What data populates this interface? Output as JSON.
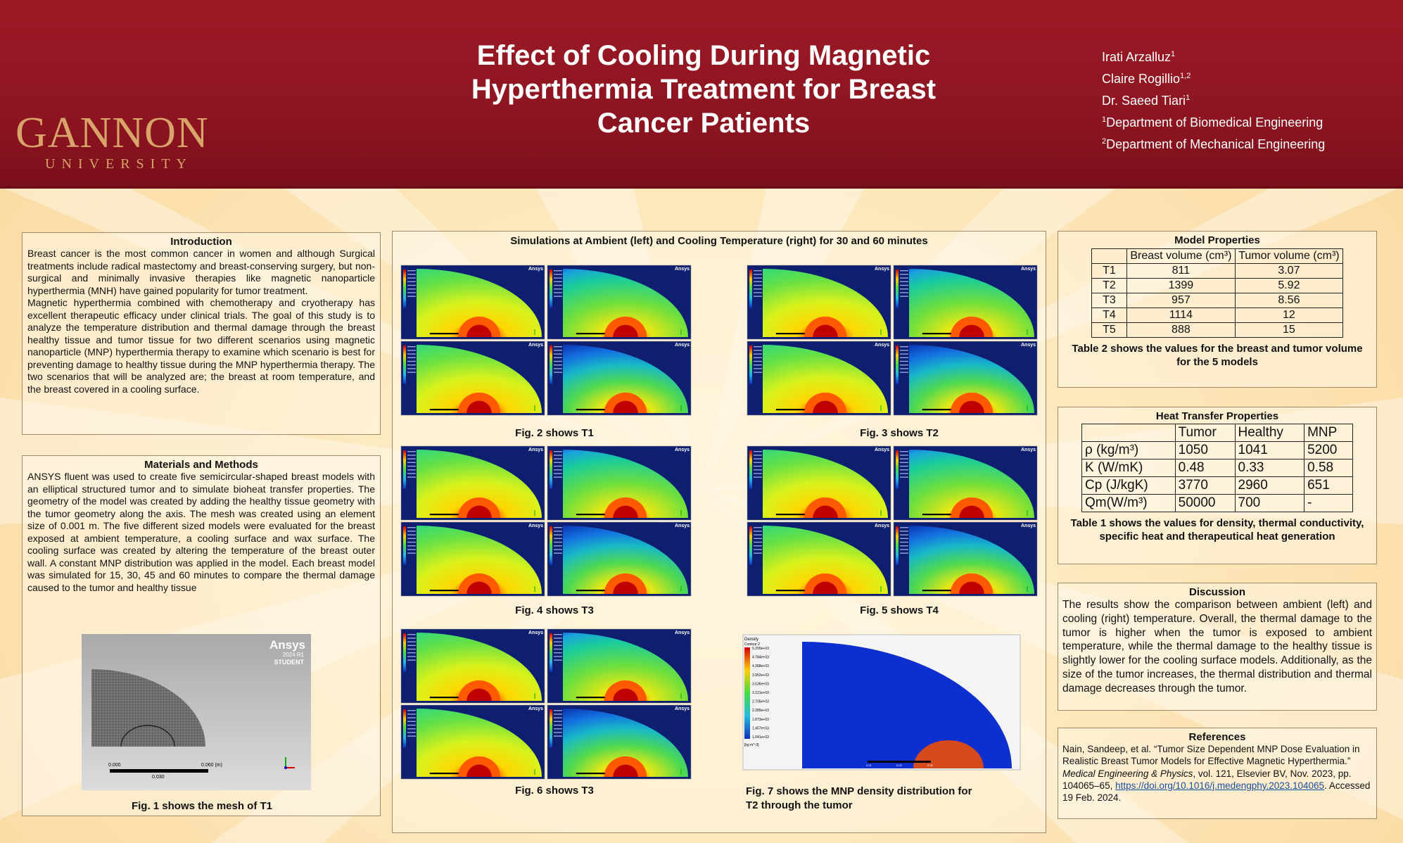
{
  "header": {
    "title_lines": [
      "Effect of Cooling During Magnetic",
      "Hyperthermia Treatment for Breast",
      "Cancer Patients"
    ],
    "logo_main": "GANNON",
    "logo_sub": "UNIVERSITY",
    "authors": [
      {
        "name": "Irati Arzalluz",
        "sup": "1"
      },
      {
        "name": "Claire Rogillio",
        "sup": "1,2"
      },
      {
        "name": "Dr. Saeed Tiari",
        "sup": "1"
      }
    ],
    "affiliations": [
      {
        "sup": "1",
        "text": "Department of Biomedical Engineering"
      },
      {
        "sup": "2",
        "text": "Department of Mechanical Engineering"
      }
    ]
  },
  "introduction": {
    "title": "Introduction",
    "p1": "Breast cancer is the most common cancer in women and although Surgical treatments include radical mastectomy and breast-conserving surgery, but non-surgical and minimally invasive therapies like magnetic nanoparticle hyperthermia (MNH) have gained popularity for tumor treatment.",
    "p2": "Magnetic hyperthermia combined with chemotherapy and cryotherapy has excellent therapeutic efficacy under clinical trials. The goal of this study is to analyze the temperature distribution and thermal damage through the breast healthy tissue and tumor tissue for two different scenarios using magnetic nanoparticle (MNP) hyperthermia therapy to examine which scenario is best for preventing damage to healthy tissue during the MNP hyperthermia therapy. The two scenarios that will be analyzed are; the breast at room temperature, and the breast covered in a cooling surface."
  },
  "methods": {
    "title": "Materials and Methods",
    "text": "ANSYS fluent was used to create five semicircular-shaped breast models with an elliptical structured tumor and to simulate bioheat transfer properties. The geometry of the model was created by adding the healthy tissue geometry with the tumor geometry along the axis. The mesh was created using an element size of 0.001 m. The five different sized models were evaluated for the breast exposed at ambient temperature, a cooling surface and wax surface. The cooling surface was created by altering the temperature of the breast outer wall. A constant MNP distribution was applied in the model. Each breast model was simulated for 15, 30, 45 and 60 minutes to compare the thermal damage caused to the tumor and healthy tissue",
    "mesh_brand": "Ansys",
    "mesh_version": "2024 R1",
    "mesh_student": "STUDENT",
    "scale_left": "0.000",
    "scale_mid": "0.030",
    "scale_right": "0.060 (m)",
    "fig1_caption": "Fig. 1 shows the mesh of T1"
  },
  "simulations": {
    "title": "Simulations at Ambient (left) and Cooling  Temperature (right)  for  30 and 60 minutes",
    "fig2": "Fig. 2 shows T1",
    "fig3": "Fig. 3 shows T2",
    "fig4": "Fig. 4 shows T3",
    "fig5": "Fig. 5 shows T4",
    "fig6": "Fig. 6 shows T3",
    "fig7_line1": "Fig. 7 shows  the MNP density distribution for",
    "fig7_line2": "T2 through the tumor",
    "panel_brand": "Ansys",
    "density_label": "Density",
    "density_sublabel": "Contour 2",
    "density_values": [
      "5.200e+03",
      "4.784e+03",
      "4.368e+03",
      "3.952e+03",
      "3.536e+03",
      "3.121e+03",
      "2.705e+03",
      "2.289e+03",
      "1.873e+03",
      "1.457e+03",
      "1.041e+03"
    ],
    "density_units": "[kg m^-3]",
    "scale_a": "0.01",
    "scale_b": "0.03",
    "scale_c": "0.05"
  },
  "model_properties": {
    "title": "Model Properties",
    "headers": [
      "",
      "Breast volume (cm³)",
      "Tumor volume (cm³)"
    ],
    "rows": [
      [
        "T1",
        "811",
        "3.07"
      ],
      [
        "T2",
        "1399",
        "5.92"
      ],
      [
        "T3",
        "957",
        "8.56"
      ],
      [
        "T4",
        "1114",
        "12"
      ],
      [
        "T5",
        "888",
        "15"
      ]
    ],
    "caption": "Table 2 shows the values for the breast and tumor volume for the 5 models"
  },
  "heat_transfer": {
    "title": "Heat Transfer Properties",
    "headers": [
      "",
      "Tumor",
      "Healthy",
      "MNP"
    ],
    "rows": [
      [
        "ρ (kg/m³)",
        "1050",
        "1041",
        "5200"
      ],
      [
        "K (W/mK)",
        "0.48",
        "0.33",
        "0.58"
      ],
      [
        "Cp (J/kgK)",
        "3770",
        "2960",
        "651"
      ],
      [
        "Qm(W/m³)",
        "50000",
        "700",
        "-"
      ]
    ],
    "caption": "Table 1 shows the values for density, thermal conductivity, specific heat and therapeutical heat generation"
  },
  "discussion": {
    "title": "Discussion",
    "text": "The results show the comparison between ambient (left) and cooling (right) temperature. Overall, the thermal damage to the tumor is higher when the tumor is exposed to ambient temperature, while the thermal damage to the healthy tissue is slightly lower for the cooling surface models. Additionally, as the size of the tumor increases, the thermal distribution and thermal damage decreases through the tumor."
  },
  "references": {
    "title": "References",
    "pre": "Nain, Sandeep, et al. “Tumor Size Dependent MNP Dose Evaluation in Realistic Breast Tumor Models for Effective Magnetic Hyperthermia.” ",
    "journal": "Medical Engineering & Physics",
    "mid": ", vol. 121, Elsevier BV, Nov. 2023, pp. 104065–65, ",
    "link": "https://doi.org/10.1016/j.medengphy.2023.104065",
    "post": ". Accessed 19 Feb. 2024."
  }
}
